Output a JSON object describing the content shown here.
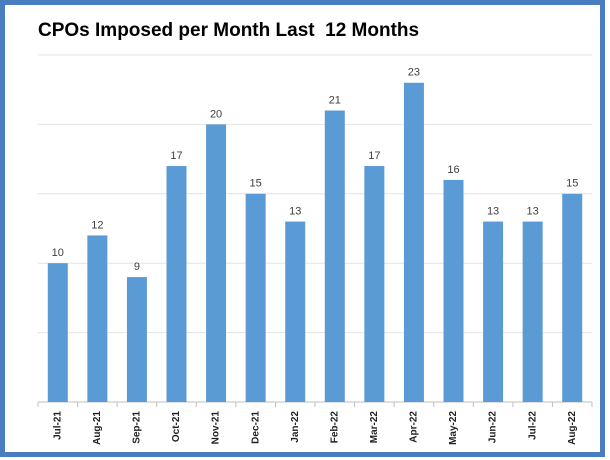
{
  "chart_data": {
    "type": "bar",
    "title": "CPOs Imposed per Month Last  12 Months",
    "categories": [
      "Jul-21",
      "Aug-21",
      "Sep-21",
      "Oct-21",
      "Nov-21",
      "Dec-21",
      "Jan-22",
      "Feb-22",
      "Mar-22",
      "Apr-22",
      "May-22",
      "Jun-22",
      "Jul-22",
      "Aug-22"
    ],
    "values": [
      10,
      12,
      9,
      17,
      20,
      15,
      13,
      21,
      17,
      23,
      16,
      13,
      13,
      15
    ],
    "color": "#5b9bd5",
    "ylim": [
      0,
      25
    ],
    "yticks": [
      0,
      5,
      10,
      15,
      20,
      25
    ],
    "grid": true
  }
}
